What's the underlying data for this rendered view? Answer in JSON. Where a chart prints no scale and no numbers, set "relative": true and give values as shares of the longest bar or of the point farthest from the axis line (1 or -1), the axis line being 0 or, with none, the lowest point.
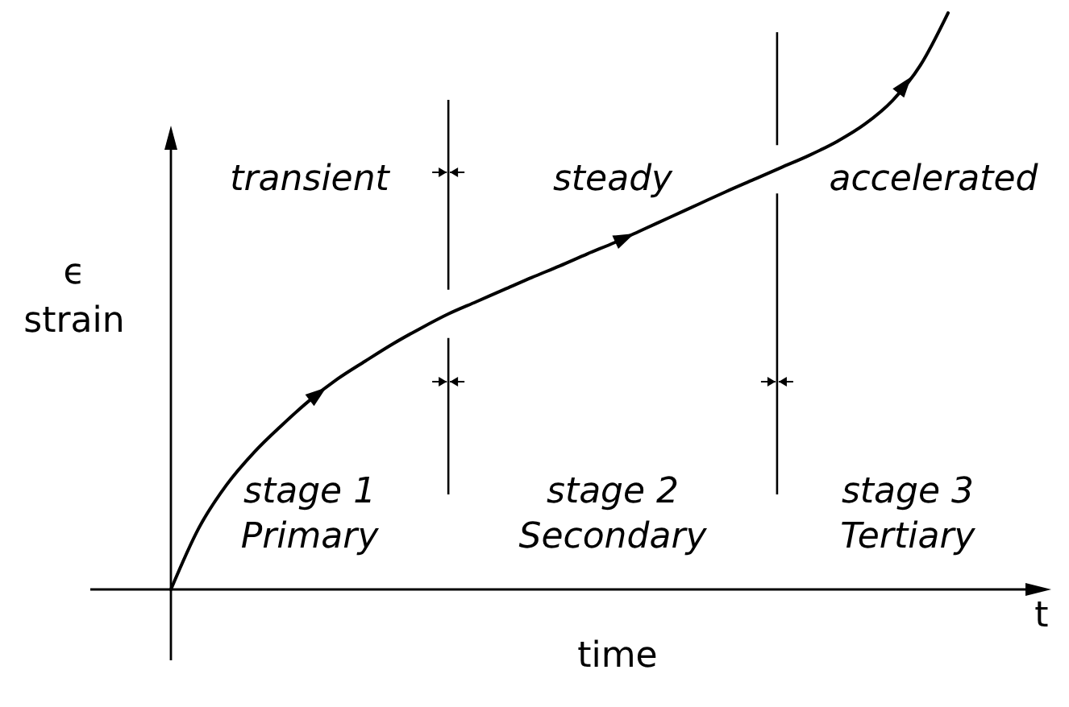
{
  "chart_data": {
    "type": "line",
    "relative": true,
    "xlabel": "time",
    "ylabel": "ϵ\nstrain",
    "categories": [
      null,
      null,
      null,
      null,
      null,
      null,
      null,
      null,
      null,
      null,
      null,
      null,
      null,
      null,
      null,
      null,
      null,
      null,
      null,
      null,
      null,
      null,
      null,
      null,
      null,
      null,
      null,
      null,
      null
    ],
    "series": [
      {
        "color": "#000000",
        "values": [
          0,
          0.106,
          0.181,
          0.238,
          0.285,
          0.328,
          0.365,
          0.396,
          0.426,
          0.453,
          0.478,
          0.499,
          0.52,
          0.541,
          0.561,
          0.582,
          0.602,
          0.624,
          0.646,
          0.668,
          0.69,
          0.711,
          0.732,
          0.753,
          0.777,
          0.807,
          0.848,
          0.909,
          1
        ]
      }
    ],
    "annotations": [
      "transient",
      "steady",
      "accelerated",
      "stage 1\nPrimary",
      "stage 2\nSecondary",
      "stage 3\nTertiary",
      "t"
    ]
  }
}
